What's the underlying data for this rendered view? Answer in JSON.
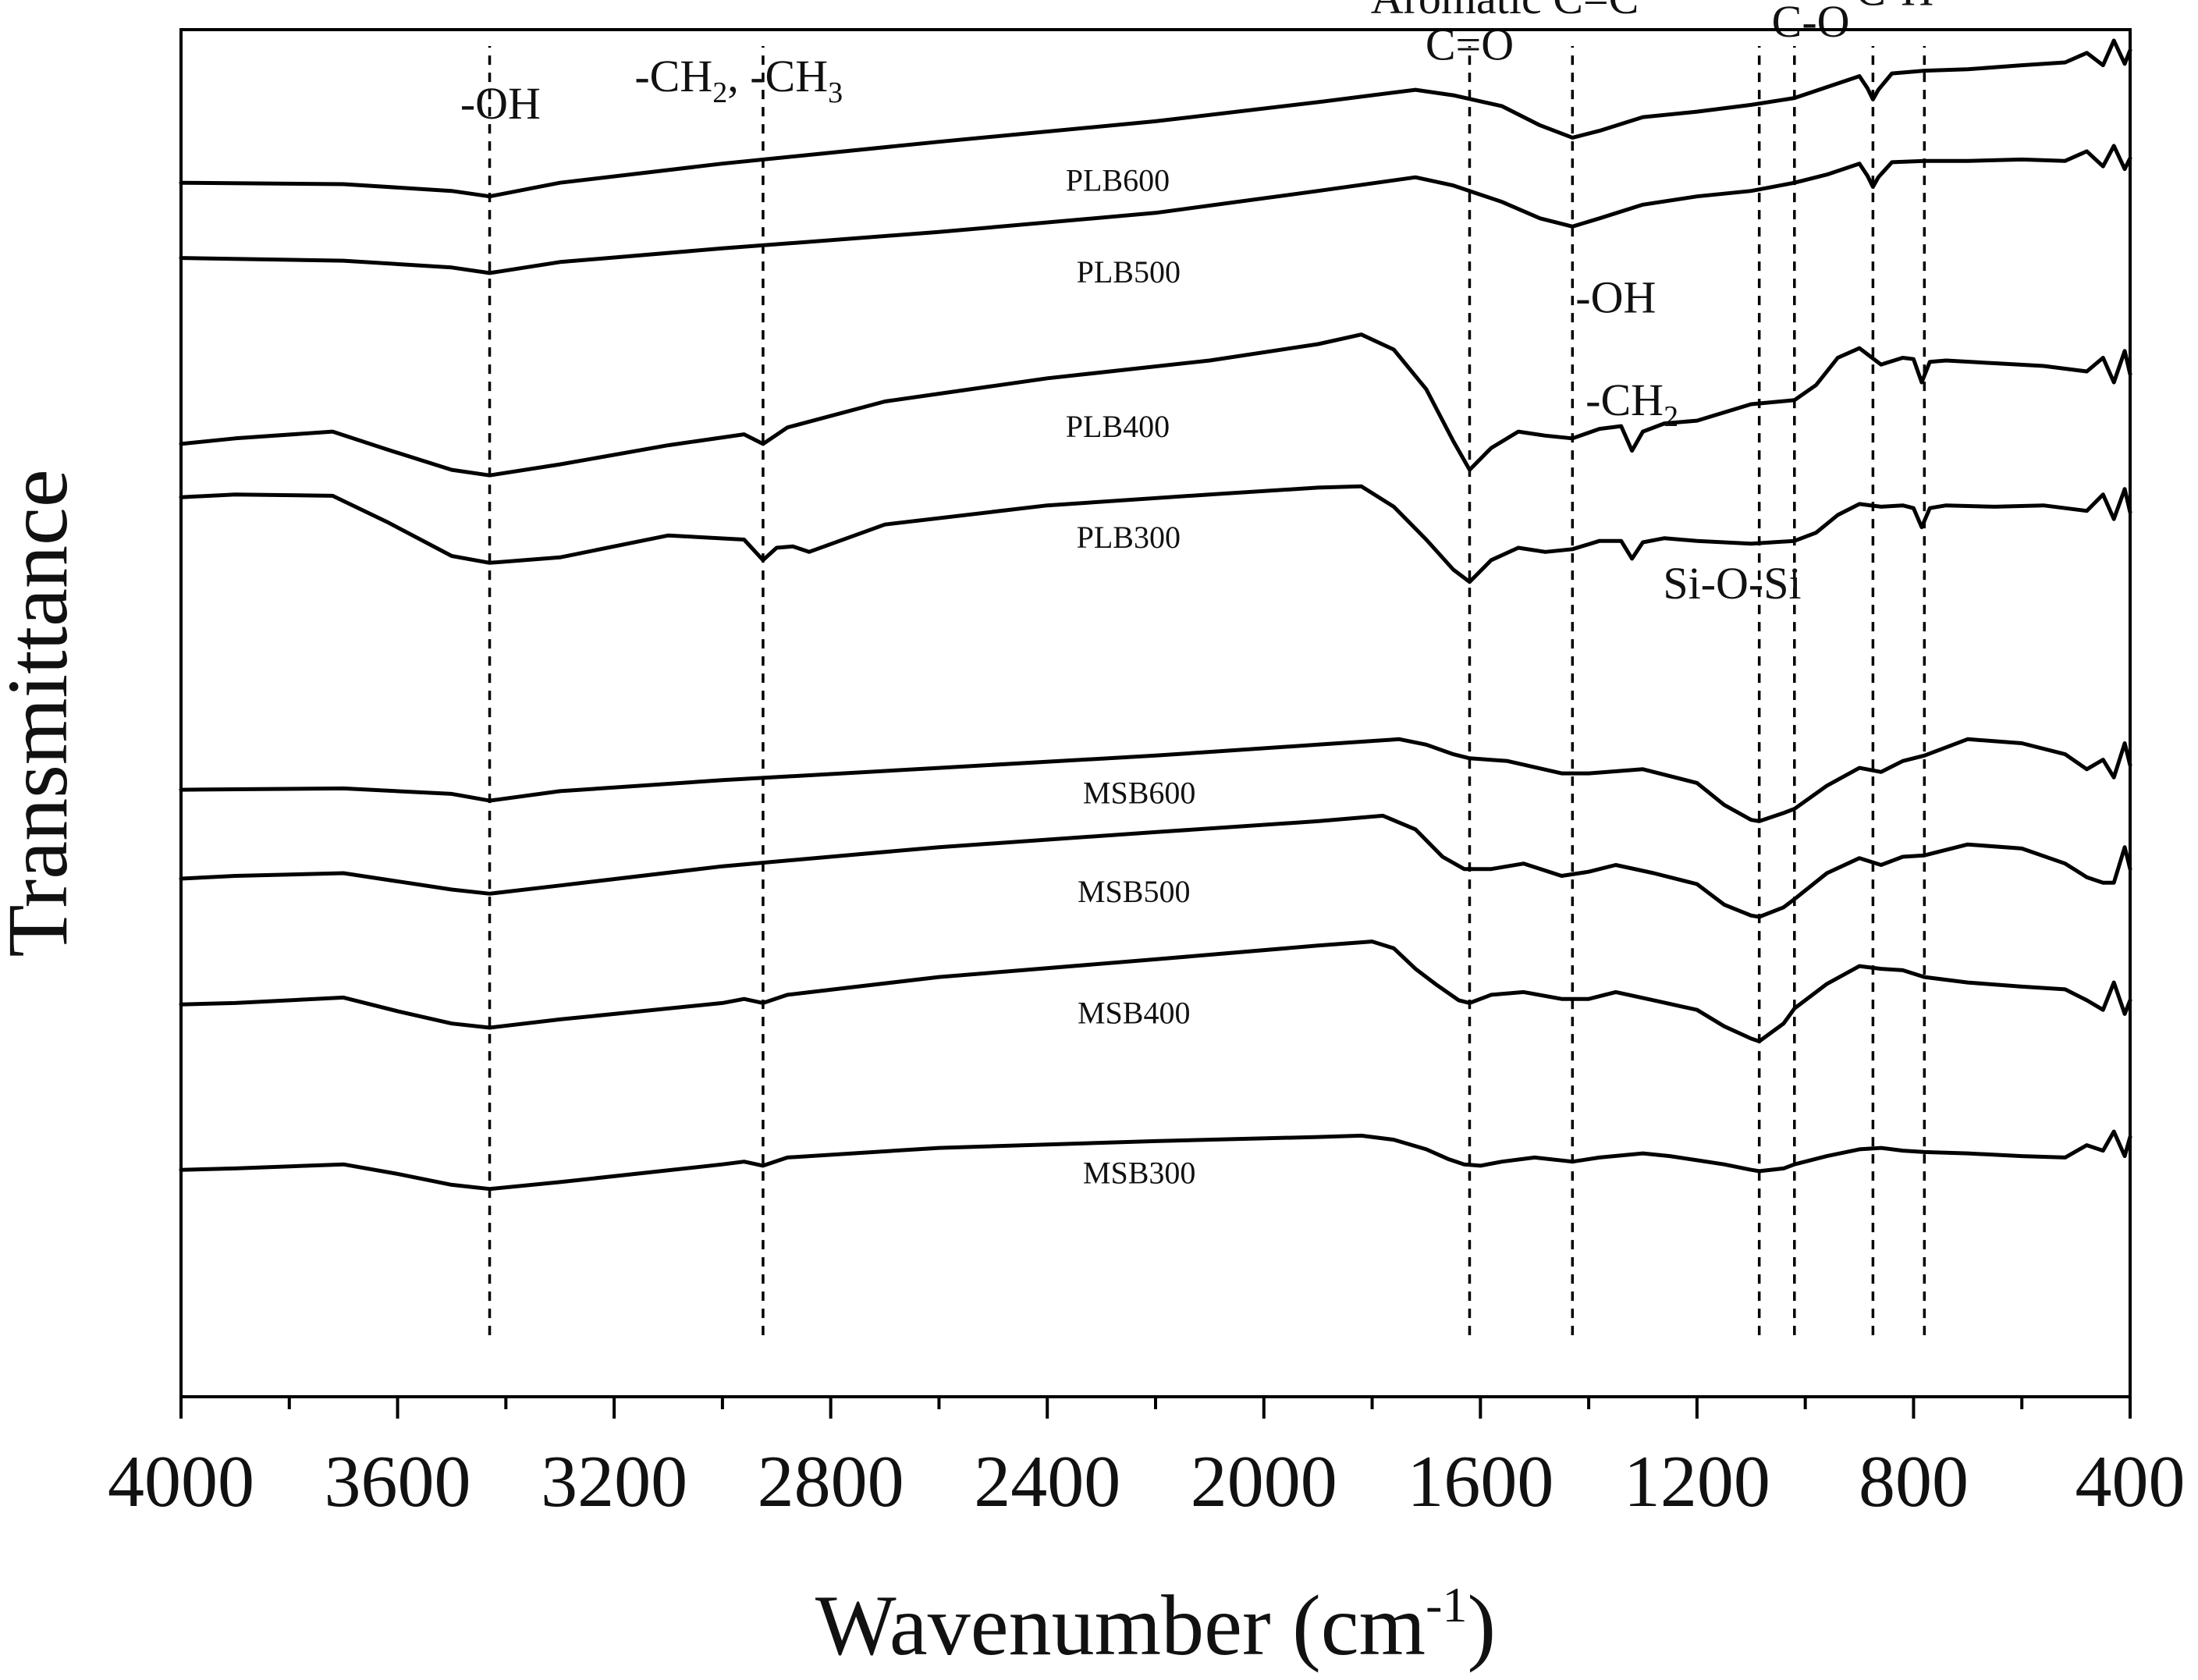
{
  "chart_data": {
    "type": "line",
    "xlabel_main": "Wavenumber (cm",
    "xlabel_sup": "-1",
    "xlabel_close": ")",
    "ylabel": "Transmittance",
    "xlim": [
      4000,
      400
    ],
    "x_ticks": [
      4000,
      3600,
      3200,
      2800,
      2400,
      2000,
      1600,
      1200,
      800,
      400
    ],
    "x_tick_labels": [
      "4000",
      "3600",
      "3200",
      "2800",
      "2400",
      "2000",
      "1600",
      "1200",
      "800",
      "400"
    ],
    "y_ticks": false,
    "ylim": [
      0,
      1
    ],
    "reference_lines": [
      3430,
      2925,
      1620,
      1430,
      1085,
      1020,
      875,
      780
    ],
    "annotations": [
      {
        "parts": [
          {
            "t": "-OH"
          }
        ],
        "x": 3410,
        "y": 0.935
      },
      {
        "parts": [
          {
            "t": "-CH"
          },
          {
            "t": "2",
            "sub": true
          },
          {
            "t": ", -CH"
          },
          {
            "t": "3",
            "sub": true
          }
        ],
        "x": 2970,
        "y": 0.955
      },
      {
        "parts": [
          {
            "t": "Aromatic C=C"
          }
        ],
        "x": 1555,
        "y": 1.012
      },
      {
        "parts": [
          {
            "t": "C=O"
          }
        ],
        "x": 1620,
        "y": 0.978
      },
      {
        "parts": [
          {
            "t": "C-O"
          }
        ],
        "x": 990,
        "y": 0.995
      },
      {
        "parts": [
          {
            "t": "C-H"
          }
        ],
        "x": 835,
        "y": 1.018
      },
      {
        "parts": [
          {
            "t": "-OH"
          }
        ],
        "x": 1350,
        "y": 0.793
      },
      {
        "parts": [
          {
            "t": "-CH"
          },
          {
            "t": "2",
            "sub": true
          }
        ],
        "x": 1320,
        "y": 0.718
      },
      {
        "parts": [
          {
            "t": "Si-O-Si"
          }
        ],
        "x": 1135,
        "y": 0.584
      }
    ],
    "series": [
      {
        "name": "PLB600",
        "label_x": 2270,
        "label_y": 0.882,
        "x": [
          4000,
          3700,
          3500,
          3430,
          3300,
          3000,
          2600,
          2200,
          1900,
          1720,
          1650,
          1560,
          1490,
          1430,
          1380,
          1300,
          1200,
          1100,
          1020,
          960,
          900,
          885,
          875,
          865,
          840,
          780,
          700,
          600,
          520,
          480,
          450,
          430,
          410,
          400
        ],
        "y": [
          0.888,
          0.887,
          0.882,
          0.878,
          0.888,
          0.902,
          0.918,
          0.933,
          0.947,
          0.956,
          0.952,
          0.944,
          0.93,
          0.921,
          0.926,
          0.936,
          0.94,
          0.945,
          0.95,
          0.958,
          0.966,
          0.957,
          0.949,
          0.956,
          0.968,
          0.97,
          0.971,
          0.974,
          0.976,
          0.983,
          0.974,
          0.992,
          0.975,
          0.985
        ]
      },
      {
        "name": "PLB500",
        "label_x": 2250,
        "label_y": 0.815,
        "x": [
          4000,
          3700,
          3500,
          3430,
          3300,
          3000,
          2600,
          2200,
          1900,
          1720,
          1650,
          1560,
          1490,
          1430,
          1380,
          1300,
          1200,
          1100,
          1020,
          960,
          900,
          885,
          875,
          865,
          840,
          780,
          700,
          600,
          520,
          480,
          450,
          430,
          410,
          400
        ],
        "y": [
          0.833,
          0.831,
          0.826,
          0.822,
          0.83,
          0.84,
          0.852,
          0.866,
          0.882,
          0.892,
          0.886,
          0.874,
          0.862,
          0.856,
          0.862,
          0.872,
          0.878,
          0.882,
          0.888,
          0.894,
          0.902,
          0.893,
          0.885,
          0.892,
          0.903,
          0.904,
          0.904,
          0.905,
          0.904,
          0.911,
          0.9,
          0.915,
          0.898,
          0.906
        ]
      },
      {
        "name": "PLB400",
        "label_x": 2270,
        "label_y": 0.702,
        "x": [
          4000,
          3900,
          3720,
          3620,
          3500,
          3430,
          3300,
          3100,
          2960,
          2925,
          2880,
          2700,
          2400,
          2100,
          1900,
          1820,
          1760,
          1700,
          1650,
          1620,
          1580,
          1530,
          1480,
          1430,
          1380,
          1340,
          1320,
          1300,
          1260,
          1200,
          1100,
          1020,
          980,
          940,
          900,
          860,
          820,
          800,
          785,
          770,
          740,
          650,
          560,
          520,
          480,
          450,
          430,
          410,
          400
        ],
        "y": [
          0.697,
          0.701,
          0.706,
          0.693,
          0.678,
          0.674,
          0.682,
          0.696,
          0.704,
          0.697,
          0.709,
          0.728,
          0.745,
          0.758,
          0.77,
          0.777,
          0.766,
          0.737,
          0.699,
          0.678,
          0.694,
          0.706,
          0.703,
          0.701,
          0.708,
          0.71,
          0.692,
          0.706,
          0.712,
          0.714,
          0.726,
          0.729,
          0.74,
          0.76,
          0.767,
          0.755,
          0.76,
          0.759,
          0.742,
          0.757,
          0.758,
          0.756,
          0.754,
          0.752,
          0.75,
          0.76,
          0.742,
          0.765,
          0.748
        ]
      },
      {
        "name": "PLB300",
        "label_x": 2250,
        "label_y": 0.621,
        "x": [
          4000,
          3900,
          3720,
          3620,
          3500,
          3430,
          3300,
          3100,
          2960,
          2925,
          2900,
          2870,
          2840,
          2700,
          2400,
          2100,
          1900,
          1820,
          1760,
          1700,
          1650,
          1620,
          1580,
          1530,
          1480,
          1430,
          1380,
          1340,
          1320,
          1300,
          1260,
          1200,
          1100,
          1020,
          980,
          940,
          900,
          860,
          820,
          800,
          785,
          770,
          740,
          650,
          560,
          520,
          480,
          450,
          430,
          410,
          400
        ],
        "y": [
          0.658,
          0.66,
          0.659,
          0.64,
          0.615,
          0.61,
          0.614,
          0.63,
          0.627,
          0.612,
          0.621,
          0.622,
          0.618,
          0.638,
          0.652,
          0.66,
          0.665,
          0.666,
          0.651,
          0.627,
          0.605,
          0.596,
          0.612,
          0.621,
          0.618,
          0.62,
          0.626,
          0.626,
          0.613,
          0.625,
          0.628,
          0.626,
          0.624,
          0.626,
          0.632,
          0.645,
          0.653,
          0.651,
          0.652,
          0.65,
          0.636,
          0.65,
          0.652,
          0.651,
          0.652,
          0.65,
          0.648,
          0.66,
          0.642,
          0.664,
          0.647
        ]
      },
      {
        "name": "MSB600",
        "label_x": 2230,
        "label_y": 0.434,
        "x": [
          4000,
          3700,
          3500,
          3430,
          3300,
          3000,
          2600,
          2200,
          1900,
          1750,
          1700,
          1650,
          1620,
          1550,
          1450,
          1400,
          1300,
          1200,
          1150,
          1100,
          1085,
          1040,
          1020,
          960,
          900,
          860,
          820,
          780,
          700,
          600,
          520,
          480,
          450,
          430,
          410,
          400
        ],
        "y": [
          0.444,
          0.445,
          0.441,
          0.436,
          0.443,
          0.451,
          0.46,
          0.469,
          0.477,
          0.481,
          0.477,
          0.47,
          0.467,
          0.465,
          0.456,
          0.456,
          0.459,
          0.449,
          0.433,
          0.422,
          0.421,
          0.427,
          0.43,
          0.447,
          0.46,
          0.457,
          0.465,
          0.469,
          0.481,
          0.478,
          0.47,
          0.459,
          0.466,
          0.453,
          0.478,
          0.462
        ]
      },
      {
        "name": "MSB500",
        "label_x": 2240,
        "label_y": 0.362,
        "x": [
          4000,
          3900,
          3700,
          3500,
          3430,
          3300,
          3000,
          2600,
          2200,
          1900,
          1780,
          1720,
          1670,
          1630,
          1580,
          1520,
          1450,
          1400,
          1350,
          1280,
          1200,
          1150,
          1100,
          1085,
          1040,
          1020,
          960,
          900,
          860,
          820,
          780,
          700,
          600,
          520,
          480,
          450,
          430,
          410,
          400
        ],
        "y": [
          0.379,
          0.381,
          0.383,
          0.371,
          0.368,
          0.374,
          0.388,
          0.402,
          0.413,
          0.421,
          0.425,
          0.415,
          0.395,
          0.386,
          0.386,
          0.39,
          0.381,
          0.384,
          0.389,
          0.383,
          0.375,
          0.36,
          0.352,
          0.351,
          0.358,
          0.364,
          0.383,
          0.394,
          0.389,
          0.395,
          0.396,
          0.404,
          0.401,
          0.39,
          0.38,
          0.376,
          0.376,
          0.402,
          0.386
        ]
      },
      {
        "name": "MSB400",
        "label_x": 2240,
        "label_y": 0.273,
        "x": [
          4000,
          3900,
          3700,
          3600,
          3500,
          3430,
          3300,
          3000,
          2960,
          2925,
          2880,
          2600,
          2200,
          1900,
          1800,
          1760,
          1720,
          1680,
          1640,
          1620,
          1580,
          1520,
          1450,
          1400,
          1350,
          1280,
          1200,
          1150,
          1100,
          1085,
          1040,
          1020,
          960,
          900,
          860,
          820,
          780,
          700,
          600,
          520,
          480,
          450,
          430,
          410,
          400
        ],
        "y": [
          0.287,
          0.288,
          0.292,
          0.282,
          0.273,
          0.27,
          0.276,
          0.288,
          0.291,
          0.288,
          0.294,
          0.307,
          0.32,
          0.33,
          0.333,
          0.328,
          0.313,
          0.301,
          0.29,
          0.288,
          0.294,
          0.296,
          0.291,
          0.291,
          0.296,
          0.29,
          0.283,
          0.271,
          0.262,
          0.26,
          0.273,
          0.284,
          0.302,
          0.315,
          0.313,
          0.312,
          0.307,
          0.303,
          0.3,
          0.298,
          0.29,
          0.283,
          0.303,
          0.28,
          0.29
        ]
      },
      {
        "name": "MSB300",
        "label_x": 2230,
        "label_y": 0.156,
        "x": [
          4000,
          3900,
          3700,
          3600,
          3500,
          3430,
          3300,
          3000,
          2960,
          2925,
          2880,
          2600,
          2200,
          1900,
          1820,
          1760,
          1700,
          1660,
          1630,
          1600,
          1560,
          1500,
          1430,
          1380,
          1300,
          1250,
          1200,
          1150,
          1100,
          1085,
          1040,
          1020,
          960,
          900,
          860,
          820,
          780,
          700,
          600,
          520,
          480,
          450,
          430,
          410,
          400
        ],
        "y": [
          0.166,
          0.167,
          0.17,
          0.163,
          0.155,
          0.152,
          0.157,
          0.17,
          0.172,
          0.169,
          0.175,
          0.182,
          0.187,
          0.19,
          0.191,
          0.188,
          0.181,
          0.174,
          0.17,
          0.169,
          0.172,
          0.175,
          0.172,
          0.175,
          0.178,
          0.176,
          0.173,
          0.17,
          0.166,
          0.165,
          0.167,
          0.17,
          0.176,
          0.181,
          0.182,
          0.18,
          0.179,
          0.178,
          0.176,
          0.175,
          0.184,
          0.18,
          0.194,
          0.176,
          0.19
        ]
      }
    ]
  }
}
